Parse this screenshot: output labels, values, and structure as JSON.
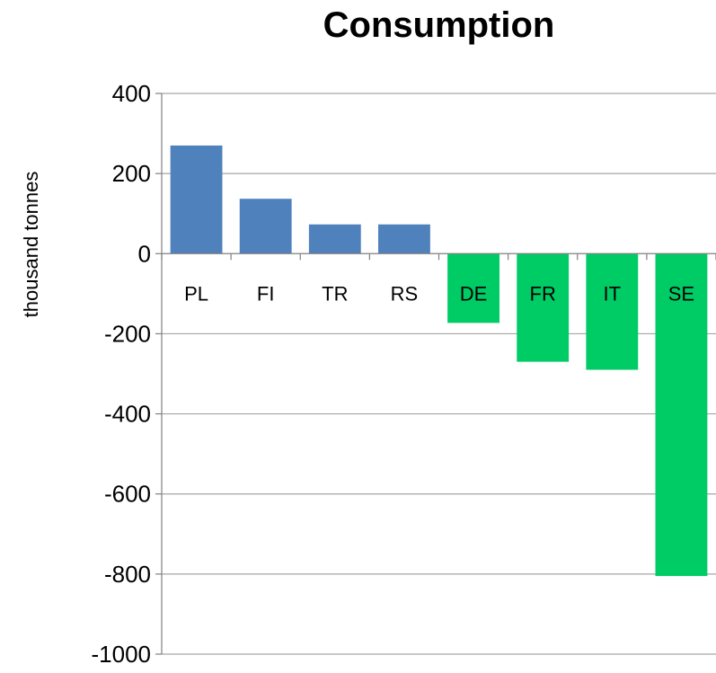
{
  "chart_data": {
    "type": "bar",
    "title": "Consumption",
    "xlabel": "",
    "ylabel": "thousand tonnes",
    "ylim": [
      -1000,
      400
    ],
    "yticks": [
      400,
      200,
      0,
      -200,
      -400,
      -600,
      -800,
      -1000
    ],
    "grid": true,
    "categories": [
      "PL",
      "FI",
      "TR",
      "RS",
      "DE",
      "FR",
      "IT",
      "SE"
    ],
    "values": [
      270,
      137,
      73,
      73,
      -173,
      -270,
      -290,
      -805
    ],
    "colors": {
      "positive": "#4f81bd",
      "negative": "#00cc66",
      "grid": "#a6a6a6",
      "axis": "#808080",
      "label_on_negative": "#ffffff",
      "label_on_positive": "#000000"
    }
  }
}
